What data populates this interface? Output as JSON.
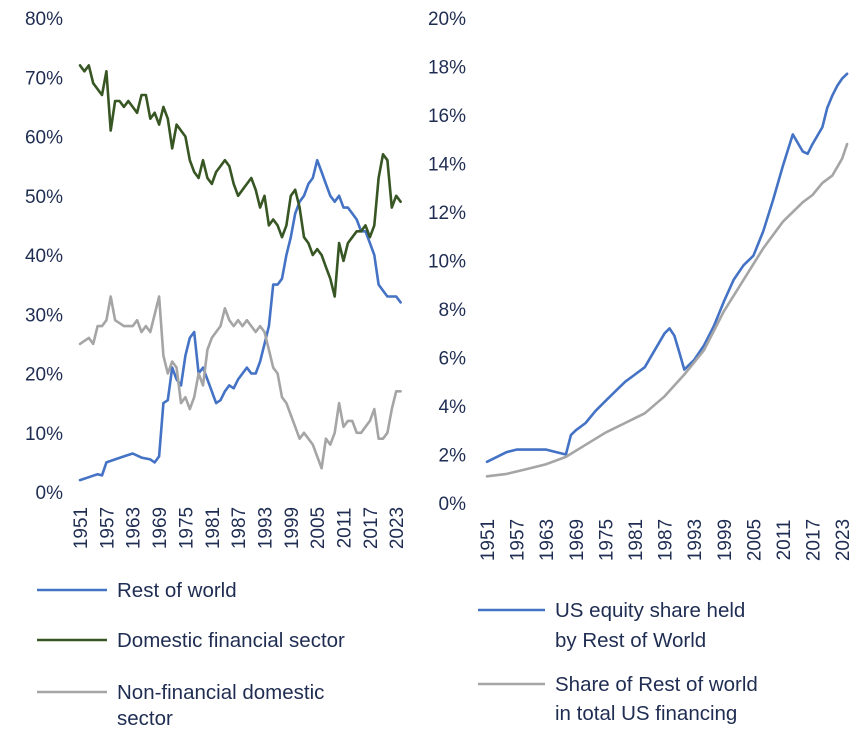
{
  "chart_data": [
    {
      "type": "line",
      "title": "",
      "xlabel": "",
      "ylabel": "",
      "ylim": [
        0,
        80
      ],
      "y_ticks": [
        "0%",
        "10%",
        "20%",
        "30%",
        "40%",
        "50%",
        "60%",
        "70%",
        "80%"
      ],
      "xlim": [
        1951,
        2025
      ],
      "x_ticks": [
        "1951",
        "1957",
        "1963",
        "1969",
        "1975",
        "1981",
        "1987",
        "1993",
        "1999",
        "2005",
        "2011",
        "2017",
        "2023"
      ],
      "grid": false,
      "legend_position": "bottom",
      "series": [
        {
          "name": "Rest of world",
          "color": "#4472c4",
          "x": [
            1951,
            1953,
            1955,
            1956,
            1957,
            1959,
            1961,
            1963,
            1965,
            1967,
            1968,
            1969,
            1970,
            1971,
            1972,
            1973,
            1974,
            1975,
            1976,
            1977,
            1978,
            1979,
            1980,
            1981,
            1982,
            1983,
            1984,
            1985,
            1986,
            1987,
            1988,
            1989,
            1990,
            1991,
            1992,
            1993,
            1994,
            1995,
            1996,
            1997,
            1998,
            1999,
            2000,
            2001,
            2002,
            2003,
            2004,
            2005,
            2006,
            2007,
            2008,
            2009,
            2010,
            2011,
            2012,
            2013,
            2014,
            2015,
            2016,
            2017,
            2018,
            2019,
            2020,
            2021,
            2022,
            2023,
            2024
          ],
          "values": [
            2,
            2.5,
            3,
            2.8,
            5,
            5.5,
            6,
            6.5,
            5.8,
            5.5,
            5,
            6,
            15,
            15.5,
            21,
            19,
            18,
            23,
            26,
            27,
            20,
            21,
            19,
            17,
            15,
            15.5,
            17,
            18,
            17.5,
            19,
            20,
            21,
            20,
            20,
            22,
            25,
            28,
            35,
            35,
            36,
            40,
            43,
            47,
            49,
            50,
            52,
            53,
            56,
            54,
            52,
            50,
            49,
            50,
            48,
            48,
            47,
            46,
            44,
            44,
            42,
            40,
            35,
            34,
            33,
            33,
            33,
            32
          ]
        },
        {
          "name": "Domestic financial sector",
          "color": "#375623",
          "x": [
            1951,
            1952,
            1953,
            1954,
            1955,
            1956,
            1957,
            1958,
            1959,
            1960,
            1961,
            1962,
            1963,
            1964,
            1965,
            1966,
            1967,
            1968,
            1969,
            1970,
            1971,
            1972,
            1973,
            1974,
            1975,
            1976,
            1977,
            1978,
            1979,
            1980,
            1981,
            1982,
            1983,
            1984,
            1985,
            1986,
            1987,
            1988,
            1989,
            1990,
            1991,
            1992,
            1993,
            1994,
            1995,
            1996,
            1997,
            1998,
            1999,
            2000,
            2001,
            2002,
            2003,
            2004,
            2005,
            2006,
            2007,
            2008,
            2009,
            2010,
            2011,
            2012,
            2013,
            2014,
            2015,
            2016,
            2017,
            2018,
            2019,
            2020,
            2021,
            2022,
            2023,
            2024
          ],
          "values": [
            72,
            71,
            72,
            69,
            68,
            67,
            71,
            61,
            66,
            66,
            65,
            66,
            65,
            64,
            67,
            67,
            63,
            64,
            62,
            65,
            63,
            58,
            62,
            61,
            60,
            56,
            54,
            53,
            56,
            53,
            52,
            54,
            55,
            56,
            55,
            52,
            50,
            51,
            52,
            53,
            51,
            48,
            50,
            45,
            46,
            45,
            43,
            45,
            50,
            51,
            48,
            43,
            42,
            40,
            41,
            40,
            38,
            36,
            33,
            42,
            39,
            42,
            43,
            44,
            44,
            45,
            43,
            45,
            53,
            57,
            56,
            48,
            50,
            49
          ]
        },
        {
          "name": "Non-financial domestic sector",
          "color": "#a5a5a5",
          "x": [
            1951,
            1953,
            1954,
            1955,
            1956,
            1957,
            1958,
            1959,
            1961,
            1963,
            1964,
            1965,
            1966,
            1967,
            1968,
            1969,
            1970,
            1971,
            1972,
            1973,
            1974,
            1975,
            1976,
            1977,
            1978,
            1979,
            1980,
            1981,
            1982,
            1983,
            1984,
            1985,
            1986,
            1987,
            1988,
            1989,
            1990,
            1991,
            1992,
            1993,
            1994,
            1995,
            1996,
            1997,
            1998,
            1999,
            2000,
            2001,
            2002,
            2003,
            2004,
            2005,
            2006,
            2007,
            2008,
            2009,
            2010,
            2011,
            2012,
            2013,
            2014,
            2015,
            2016,
            2017,
            2018,
            2019,
            2020,
            2021,
            2022,
            2023,
            2024
          ],
          "values": [
            25,
            26,
            25,
            28,
            28,
            29,
            33,
            29,
            28,
            28,
            29,
            27,
            28,
            27,
            30,
            33,
            23,
            20,
            22,
            21,
            15,
            16,
            14,
            16,
            20,
            18,
            24,
            26,
            27,
            28,
            31,
            29,
            28,
            29,
            28,
            29,
            28,
            27,
            28,
            27,
            24,
            21,
            20,
            16,
            15,
            13,
            11,
            9,
            10,
            9,
            8,
            6,
            4,
            9,
            8,
            10,
            15,
            11,
            12,
            12,
            10,
            10,
            11,
            12,
            14,
            9,
            9,
            10,
            14,
            17,
            17
          ]
        }
      ]
    },
    {
      "type": "line",
      "title": "",
      "xlabel": "",
      "ylabel": "",
      "ylim": [
        0,
        20
      ],
      "y_ticks": [
        "0%",
        "2%",
        "4%",
        "6%",
        "8%",
        "10%",
        "12%",
        "14%",
        "16%",
        "18%",
        "20%"
      ],
      "xlim": [
        1951,
        2025
      ],
      "x_ticks": [
        "1951",
        "1957",
        "1963",
        "1969",
        "1975",
        "1981",
        "1987",
        "1993",
        "1999",
        "2005",
        "2011",
        "2017",
        "2023"
      ],
      "grid": false,
      "legend_position": "bottom",
      "series": [
        {
          "name": "US equity share held by  Rest of World",
          "name_lines": [
            "US equity share held",
            "by  Rest of World"
          ],
          "color": "#4472c4",
          "x": [
            1951,
            1953,
            1955,
            1957,
            1959,
            1961,
            1963,
            1965,
            1967,
            1968,
            1969,
            1971,
            1973,
            1975,
            1977,
            1979,
            1981,
            1983,
            1985,
            1987,
            1988,
            1989,
            1990,
            1991,
            1993,
            1995,
            1997,
            1999,
            2001,
            2003,
            2005,
            2007,
            2009,
            2011,
            2013,
            2015,
            2016,
            2017,
            2019,
            2020,
            2021,
            2022,
            2023,
            2024
          ],
          "values": [
            1.7,
            1.9,
            2.1,
            2.2,
            2.2,
            2.2,
            2.2,
            2.1,
            2.0,
            2.8,
            3.0,
            3.3,
            3.8,
            4.2,
            4.6,
            5.0,
            5.3,
            5.6,
            6.3,
            7.0,
            7.2,
            6.9,
            6.2,
            5.5,
            5.9,
            6.5,
            7.3,
            8.3,
            9.2,
            9.8,
            10.2,
            11.2,
            12.5,
            13.9,
            15.2,
            14.5,
            14.4,
            14.8,
            15.5,
            16.3,
            16.8,
            17.2,
            17.5,
            17.7
          ]
        },
        {
          "name": "Share of Rest of world in total US financing",
          "name_lines": [
            "Share of Rest of world",
            "in total US financing"
          ],
          "color": "#a5a5a5",
          "x": [
            1951,
            1955,
            1959,
            1963,
            1967,
            1971,
            1975,
            1979,
            1983,
            1987,
            1991,
            1995,
            1999,
            2003,
            2007,
            2011,
            2015,
            2017,
            2019,
            2021,
            2023,
            2024
          ],
          "values": [
            1.1,
            1.2,
            1.4,
            1.6,
            1.9,
            2.4,
            2.9,
            3.3,
            3.7,
            4.4,
            5.3,
            6.3,
            7.9,
            9.2,
            10.5,
            11.6,
            12.4,
            12.7,
            13.2,
            13.5,
            14.2,
            14.8
          ]
        }
      ]
    }
  ]
}
